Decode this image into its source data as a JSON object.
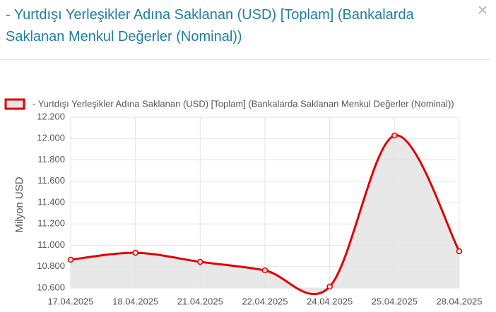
{
  "chart_data": {
    "type": "line",
    "title": "- Yurtdışı Yerleşikler Adına Saklanan (USD) [Toplam] (Bankalarda Saklanan Menkul Değerler (Nominal))",
    "y_label": "Milyon USD",
    "categories": [
      "17.04.2025",
      "18.04.2025",
      "21.04.2025",
      "22.04.2025",
      "24.04.2025",
      "25.04.2025",
      "28.04.2025"
    ],
    "series": [
      {
        "name": "- Yurtdışı Yerleşikler Adına Saklanan (USD) [Toplam] (Bankalarda Saklanan Menkul Değerler (Nominal))",
        "color": "#e00000",
        "fill": "#e6e6e6",
        "values": [
          10865,
          10930,
          10845,
          10765,
          10613,
          12028,
          10944
        ]
      }
    ],
    "ylim": [
      10600,
      12200
    ],
    "yticks": [
      {
        "value": 10600,
        "label": "10.600"
      },
      {
        "value": 10800,
        "label": "10.800"
      },
      {
        "value": 11000,
        "label": "11.000"
      },
      {
        "value": 11200,
        "label": "11.200"
      },
      {
        "value": 11400,
        "label": "11.400"
      },
      {
        "value": 11600,
        "label": "11.600"
      },
      {
        "value": 11800,
        "label": "11.800"
      },
      {
        "value": 12000,
        "label": "12.000"
      },
      {
        "value": 12200,
        "label": "12.200"
      }
    ],
    "grid": true,
    "smooth": true,
    "legend": "top"
  }
}
